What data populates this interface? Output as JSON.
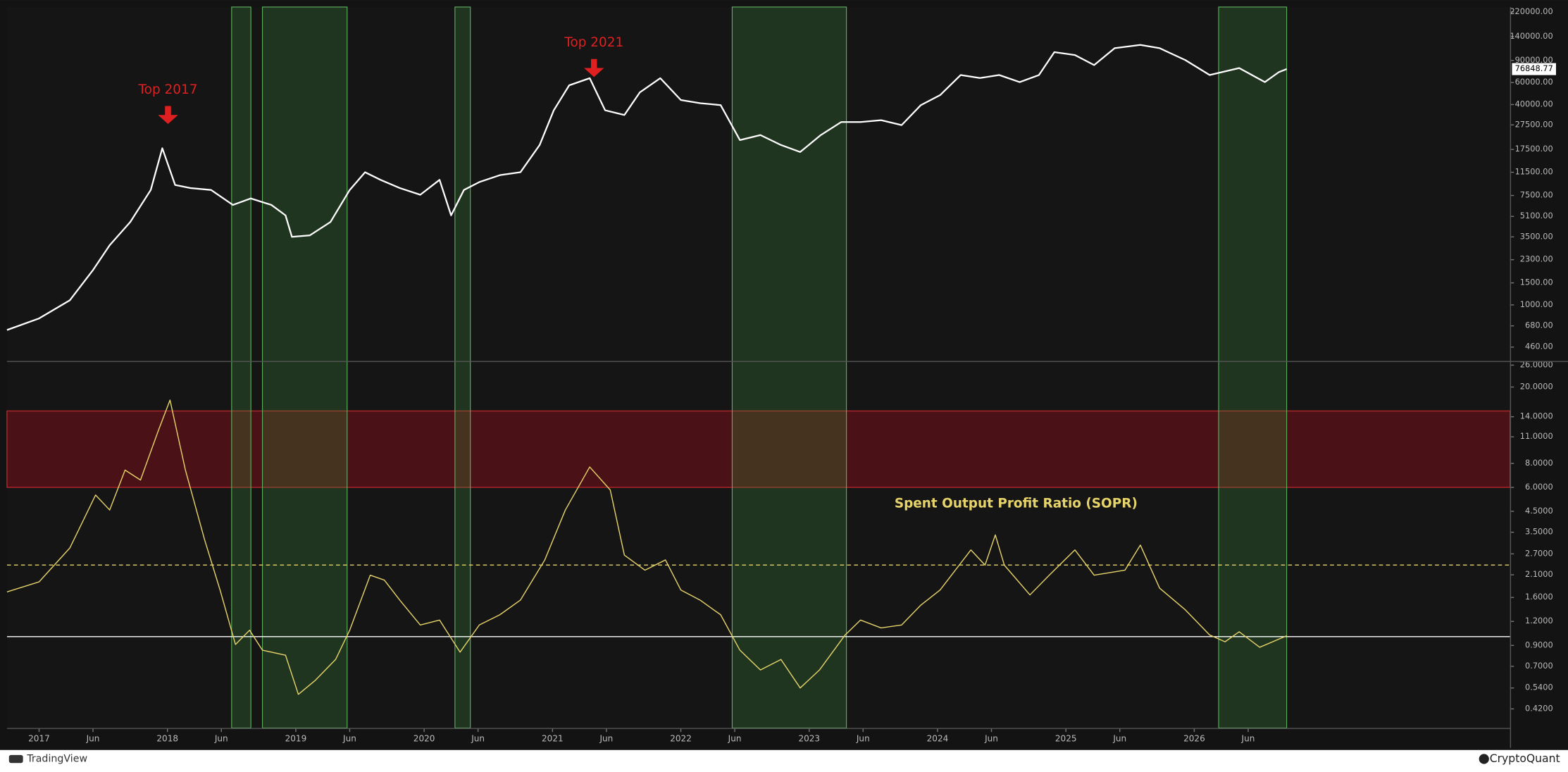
{
  "chart_data": [
    {
      "type": "line",
      "log_scale": true,
      "xlim": [
        2016.75,
        2028.46
      ],
      "ylim": [
        356,
        241000
      ],
      "yticks": [
        {
          "value": 220000,
          "label": "220000.00"
        },
        {
          "value": 140000,
          "label": "140000.00"
        },
        {
          "value": 90000,
          "label": "90000.00"
        },
        {
          "value": 60000,
          "label": "60000.00"
        },
        {
          "value": 40000,
          "label": "40000.00"
        },
        {
          "value": 27500,
          "label": "27500.00"
        },
        {
          "value": 17500,
          "label": "17500.00"
        },
        {
          "value": 11500,
          "label": "11500.00"
        },
        {
          "value": 7500,
          "label": "7500.00"
        },
        {
          "value": 5100,
          "label": "5100.00"
        },
        {
          "value": 3500,
          "label": "3500.00"
        },
        {
          "value": 2300,
          "label": "2300.00"
        },
        {
          "value": 1500,
          "label": "1500.00"
        },
        {
          "value": 1000,
          "label": "1000.00"
        },
        {
          "value": 680,
          "label": "680.00"
        },
        {
          "value": 460,
          "label": "460.00"
        }
      ],
      "x": [
        2016.75,
        2017.0,
        2017.24,
        2017.42,
        2017.55,
        2017.71,
        2017.87,
        2017.96,
        2018.06,
        2018.18,
        2018.34,
        2018.51,
        2018.65,
        2018.81,
        2018.92,
        2018.97,
        2019.11,
        2019.27,
        2019.42,
        2019.54,
        2019.66,
        2019.81,
        2019.97,
        2020.12,
        2020.21,
        2020.31,
        2020.43,
        2020.59,
        2020.75,
        2020.9,
        2021.01,
        2021.13,
        2021.29,
        2021.41,
        2021.56,
        2021.68,
        2021.84,
        2022.0,
        2022.15,
        2022.31,
        2022.46,
        2022.62,
        2022.78,
        2022.93,
        2023.09,
        2023.25,
        2023.4,
        2023.56,
        2023.72,
        2023.87,
        2024.02,
        2024.18,
        2024.33,
        2024.48,
        2024.64,
        2024.79,
        2024.91,
        2025.07,
        2025.22,
        2025.38,
        2025.58,
        2025.73,
        2025.93,
        2026.12,
        2026.35,
        2026.55,
        2026.66,
        2026.72
      ],
      "series": [
        {
          "color": "#ffffff",
          "values": [
            630,
            780,
            1090,
            1900,
            3000,
            4600,
            8300,
            17900,
            9100,
            8600,
            8300,
            6300,
            7100,
            6300,
            5200,
            3500,
            3600,
            4600,
            8300,
            11500,
            10000,
            8600,
            7600,
            10000,
            5200,
            8300,
            9600,
            10900,
            11500,
            19000,
            36000,
            57000,
            65000,
            36000,
            33000,
            50000,
            65000,
            43500,
            41000,
            39600,
            20800,
            22800,
            19000,
            16700,
            22800,
            29000,
            29000,
            30000,
            27400,
            39600,
            47600,
            68900,
            65200,
            68900,
            60500,
            68900,
            105000,
            99500,
            82800,
            113000,
            120000,
            113000,
            90800,
            68900,
            78300,
            60500,
            72800,
            76848.77
          ]
        }
      ],
      "highlight_ranges": [
        [
          2018.5,
          2018.65
        ],
        [
          2018.74,
          2019.4
        ],
        [
          2020.24,
          2020.36
        ],
        [
          2022.4,
          2023.29
        ],
        [
          2026.19,
          2026.72
        ]
      ],
      "annotations": [
        "Top 2017",
        "Top 2021"
      ]
    },
    {
      "type": "line",
      "log_scale": true,
      "title": "Spent Output Profit Ratio (SOPR)",
      "xlim": [
        2016.75,
        2028.46
      ],
      "ylim": [
        0.334,
        27.0
      ],
      "xticks": [
        2017,
        {
          "value": 2017.42,
          "label": "Jun"
        },
        2018,
        {
          "value": 2018.42,
          "label": "Jun"
        },
        2019,
        {
          "value": 2019.42,
          "label": "Jun"
        },
        2020,
        {
          "value": 2020.42,
          "label": "Jun"
        },
        2021,
        {
          "value": 2021.42,
          "label": "Jun"
        },
        2022,
        {
          "value": 2022.42,
          "label": "Jun"
        },
        2023,
        {
          "value": 2023.42,
          "label": "Jun"
        },
        2024,
        {
          "value": 2024.42,
          "label": "Jun"
        },
        2025,
        {
          "value": 2025.42,
          "label": "Jun"
        },
        2026,
        {
          "value": 2026.42,
          "label": "Jun"
        }
      ],
      "yticks": [
        {
          "value": 26,
          "label": "26.0000"
        },
        {
          "value": 20,
          "label": "20.0000"
        },
        {
          "value": 14,
          "label": "14.0000"
        },
        {
          "value": 11,
          "label": "11.0000"
        },
        {
          "value": 8,
          "label": "8.0000"
        },
        {
          "value": 6,
          "label": "6.0000"
        },
        {
          "value": 4.5,
          "label": "4.5000"
        },
        {
          "value": 3.5,
          "label": "3.5000"
        },
        {
          "value": 2.7,
          "label": "2.7000"
        },
        {
          "value": 2.1,
          "label": "2.1000"
        },
        {
          "value": 1.6,
          "label": "1.6000"
        },
        {
          "value": 1.2,
          "label": "1.2000"
        },
        {
          "value": 0.9,
          "label": "0.9000"
        },
        {
          "value": 0.7,
          "label": "0.7000"
        },
        {
          "value": 0.54,
          "label": "0.5400"
        },
        {
          "value": 0.42,
          "label": "0.4200"
        }
      ],
      "x": [
        2016.75,
        2017.0,
        2017.24,
        2017.44,
        2017.55,
        2017.67,
        2017.79,
        2017.93,
        2018.02,
        2018.14,
        2018.29,
        2018.41,
        2018.53,
        2018.64,
        2018.74,
        2018.92,
        2019.02,
        2019.15,
        2019.31,
        2019.42,
        2019.58,
        2019.69,
        2019.81,
        2019.97,
        2020.12,
        2020.28,
        2020.43,
        2020.59,
        2020.75,
        2020.94,
        2021.1,
        2021.29,
        2021.45,
        2021.56,
        2021.72,
        2021.88,
        2022.0,
        2022.15,
        2022.31,
        2022.46,
        2022.62,
        2022.78,
        2022.93,
        2023.08,
        2023.28,
        2023.4,
        2023.56,
        2023.72,
        2023.87,
        2024.02,
        2024.26,
        2024.37,
        2024.45,
        2024.52,
        2024.72,
        2024.87,
        2025.07,
        2025.22,
        2025.46,
        2025.58,
        2025.73,
        2025.93,
        2026.12,
        2026.24,
        2026.35,
        2026.51,
        2026.72
      ],
      "series": [
        {
          "color": "#e6d36a",
          "values": [
            1.71,
            1.93,
            2.9,
            5.47,
            4.57,
            7.38,
            6.55,
            11.9,
            17.1,
            7.38,
            3.19,
            1.75,
            0.91,
            1.08,
            0.85,
            0.8,
            0.5,
            0.59,
            0.76,
            1.08,
            2.09,
            1.97,
            1.55,
            1.15,
            1.22,
            0.83,
            1.15,
            1.3,
            1.55,
            2.51,
            4.57,
            7.66,
            5.81,
            2.66,
            2.22,
            2.51,
            1.75,
            1.55,
            1.3,
            0.85,
            0.67,
            0.76,
            0.54,
            0.67,
            1.02,
            1.22,
            1.11,
            1.15,
            1.46,
            1.75,
            2.83,
            2.36,
            3.39,
            2.36,
            1.65,
            2.09,
            2.83,
            2.09,
            2.22,
            3.0,
            1.79,
            1.38,
            1.02,
            0.94,
            1.06,
            0.88,
            1.01
          ]
        }
      ],
      "zones": [
        {
          "from": 6,
          "to": 15,
          "color": "#4a1216"
        }
      ],
      "reference_lines": [
        {
          "value": 1,
          "color": "#ffffff",
          "dashed": false
        },
        {
          "value": 2.36,
          "color": "#e6d36a",
          "dashed": true
        }
      ]
    }
  ],
  "footer": {
    "left": "TradingView",
    "right": "CryptoQuant"
  }
}
